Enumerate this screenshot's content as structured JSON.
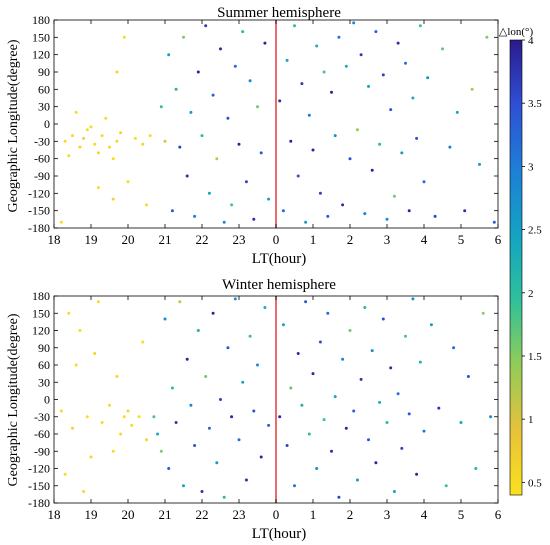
{
  "chart_data": [
    {
      "type": "scatter",
      "title": "Summer hemisphere",
      "xlabel": "LT(hour)",
      "ylabel": "Geographic Longitude(degree)",
      "x_tick_labels": [
        "18",
        "19",
        "20",
        "21",
        "22",
        "23",
        "0",
        "1",
        "2",
        "3",
        "4",
        "5",
        "6"
      ],
      "y_tick_labels": [
        "180",
        "150",
        "120",
        "90",
        "60",
        "30",
        "0",
        "-30",
        "-60",
        "-90",
        "-120",
        "-150",
        "-180"
      ],
      "xlim_hours_after_18LT": [
        0,
        12
      ],
      "ylim": [
        -180,
        180
      ],
      "reference_line_LT": "0",
      "reference_line_color": "#e0474c",
      "color_encodes": "△lon(°)",
      "points": [
        [
          0.3,
          -30,
          0.5
        ],
        [
          0.5,
          -20,
          0.5
        ],
        [
          0.7,
          -40,
          0.6
        ],
        [
          0.9,
          -10,
          0.5
        ],
        [
          1.1,
          -35,
          0.5
        ],
        [
          1.2,
          -50,
          0.6
        ],
        [
          0.4,
          -55,
          0.5
        ],
        [
          0.8,
          -25,
          0.7
        ],
        [
          1.3,
          -20,
          0.5
        ],
        [
          1.5,
          -40,
          0.5
        ],
        [
          1.7,
          -30,
          0.6
        ],
        [
          1.0,
          -5,
          0.5
        ],
        [
          1.4,
          10,
          0.5
        ],
        [
          0.6,
          20,
          0.5
        ],
        [
          1.6,
          -60,
          0.5
        ],
        [
          1.8,
          -15,
          0.6
        ],
        [
          2.2,
          -25,
          0.5
        ],
        [
          2.4,
          -35,
          0.6
        ],
        [
          2.6,
          -20,
          0.5
        ],
        [
          1.2,
          -110,
          0.5
        ],
        [
          1.6,
          -130,
          0.6
        ],
        [
          2.0,
          -100,
          0.5
        ],
        [
          1.9,
          150,
          0.5
        ],
        [
          1.7,
          90,
          0.6
        ],
        [
          0.2,
          -170,
          0.5
        ],
        [
          2.5,
          -140,
          0.5
        ],
        [
          2.9,
          30,
          2.0
        ],
        [
          3.0,
          -30,
          1.0
        ],
        [
          3.1,
          120,
          2.5
        ],
        [
          3.2,
          -150,
          3.4
        ],
        [
          3.3,
          60,
          2.2
        ],
        [
          3.4,
          -40,
          3.6
        ],
        [
          3.5,
          150,
          1.5
        ],
        [
          3.6,
          -90,
          3.8
        ],
        [
          3.7,
          20,
          2.6
        ],
        [
          3.8,
          -160,
          3.0
        ],
        [
          3.9,
          90,
          3.9
        ],
        [
          4.0,
          -20,
          2.0
        ],
        [
          4.1,
          170,
          3.7
        ],
        [
          4.2,
          -120,
          2.4
        ],
        [
          4.3,
          50,
          3.3
        ],
        [
          4.4,
          -60,
          1.2
        ],
        [
          4.5,
          130,
          3.9
        ],
        [
          4.6,
          -170,
          2.8
        ],
        [
          4.7,
          10,
          3.5
        ],
        [
          4.8,
          -140,
          1.8
        ],
        [
          4.9,
          100,
          3.2
        ],
        [
          5.0,
          -35,
          3.9
        ],
        [
          5.1,
          160,
          2.1
        ],
        [
          5.2,
          -100,
          3.6
        ],
        [
          5.3,
          75,
          2.9
        ],
        [
          5.4,
          -165,
          3.8
        ],
        [
          5.5,
          30,
          1.6
        ],
        [
          5.6,
          -50,
          3.4
        ],
        [
          5.7,
          140,
          3.9
        ],
        [
          5.8,
          -130,
          2.5
        ],
        [
          6.1,
          40,
          3.8
        ],
        [
          6.2,
          -150,
          3.2
        ],
        [
          6.3,
          110,
          2.4
        ],
        [
          6.4,
          -30,
          3.9
        ],
        [
          6.5,
          170,
          2.0
        ],
        [
          6.6,
          -90,
          3.5
        ],
        [
          6.7,
          70,
          3.7
        ],
        [
          6.8,
          -170,
          2.6
        ],
        [
          6.9,
          15,
          3.0
        ],
        [
          7.0,
          -45,
          3.9
        ],
        [
          7.1,
          135,
          2.2
        ],
        [
          7.2,
          -120,
          3.6
        ],
        [
          7.3,
          90,
          1.8
        ],
        [
          7.4,
          -160,
          3.4
        ],
        [
          7.5,
          55,
          3.9
        ],
        [
          7.6,
          -20,
          2.7
        ],
        [
          7.7,
          150,
          3.1
        ],
        [
          7.8,
          -140,
          3.8
        ],
        [
          7.9,
          100,
          2.3
        ],
        [
          8.0,
          -60,
          3.5
        ],
        [
          8.1,
          175,
          2.9
        ],
        [
          8.2,
          -10,
          1.4
        ],
        [
          8.3,
          120,
          3.7
        ],
        [
          8.4,
          -155,
          3.0
        ],
        [
          8.5,
          65,
          2.5
        ],
        [
          8.6,
          -80,
          3.9
        ],
        [
          8.7,
          160,
          3.3
        ],
        [
          8.8,
          -35,
          2.1
        ],
        [
          8.9,
          85,
          3.6
        ],
        [
          9.0,
          -165,
          2.8
        ],
        [
          9.1,
          25,
          3.4
        ],
        [
          9.2,
          -125,
          1.6
        ],
        [
          9.3,
          140,
          3.8
        ],
        [
          9.4,
          -50,
          2.6
        ],
        [
          9.5,
          105,
          3.1
        ],
        [
          9.6,
          -150,
          3.9
        ],
        [
          9.7,
          45,
          2.3
        ],
        [
          9.8,
          -25,
          3.5
        ],
        [
          9.9,
          170,
          1.9
        ],
        [
          10.0,
          -100,
          3.2
        ],
        [
          10.1,
          80,
          2.7
        ],
        [
          10.3,
          -160,
          3.6
        ],
        [
          10.5,
          130,
          1.7
        ],
        [
          10.7,
          -40,
          3.0
        ],
        [
          10.9,
          20,
          2.4
        ],
        [
          11.1,
          -150,
          3.8
        ],
        [
          11.3,
          60,
          1.3
        ],
        [
          11.5,
          -70,
          2.6
        ],
        [
          11.7,
          150,
          1.5
        ],
        [
          11.9,
          -170,
          3.4
        ]
      ]
    },
    {
      "type": "scatter",
      "title": "Winter hemisphere",
      "xlabel": "LT(hour)",
      "ylabel": "Geographic Longitude(degree)",
      "x_tick_labels": [
        "18",
        "19",
        "20",
        "21",
        "22",
        "23",
        "0",
        "1",
        "2",
        "3",
        "4",
        "5",
        "6"
      ],
      "y_tick_labels": [
        "180",
        "150",
        "120",
        "90",
        "60",
        "30",
        "0",
        "-30",
        "-60",
        "-90",
        "-120",
        "-150",
        "-180"
      ],
      "xlim_hours_after_18LT": [
        0,
        12
      ],
      "ylim": [
        -180,
        180
      ],
      "reference_line_LT": "0",
      "reference_line_color": "#e0474c",
      "color_encodes": "△lon(°)",
      "points": [
        [
          0.2,
          -20,
          0.5
        ],
        [
          0.4,
          150,
          0.5
        ],
        [
          0.5,
          -50,
          0.6
        ],
        [
          0.7,
          120,
          0.5
        ],
        [
          0.9,
          -30,
          0.5
        ],
        [
          1.1,
          80,
          0.6
        ],
        [
          1.3,
          -40,
          0.5
        ],
        [
          1.5,
          -10,
          0.5
        ],
        [
          1.7,
          40,
          0.6
        ],
        [
          1.9,
          -30,
          0.5
        ],
        [
          0.3,
          -130,
          0.5
        ],
        [
          0.8,
          -160,
          0.6
        ],
        [
          1.2,
          170,
          0.5
        ],
        [
          1.6,
          -90,
          0.5
        ],
        [
          1.8,
          -60,
          0.5
        ],
        [
          2.0,
          -20,
          0.6
        ],
        [
          2.1,
          -45,
          0.5
        ],
        [
          2.3,
          -30,
          0.5
        ],
        [
          2.4,
          100,
          0.5
        ],
        [
          0.6,
          60,
          0.5
        ],
        [
          1.0,
          -100,
          0.6
        ],
        [
          2.5,
          -70,
          0.6
        ],
        [
          2.7,
          -30,
          1.8
        ],
        [
          2.8,
          -60,
          2.3
        ],
        [
          2.9,
          -90,
          1.5
        ],
        [
          3.0,
          140,
          2.8
        ],
        [
          3.1,
          -120,
          3.4
        ],
        [
          3.2,
          20,
          2.0
        ],
        [
          3.3,
          -40,
          3.7
        ],
        [
          3.4,
          170,
          1.2
        ],
        [
          3.5,
          -150,
          2.5
        ],
        [
          3.6,
          70,
          3.9
        ],
        [
          3.7,
          -10,
          2.9
        ],
        [
          3.8,
          -80,
          3.5
        ],
        [
          3.9,
          120,
          2.2
        ],
        [
          4.0,
          -160,
          3.8
        ],
        [
          4.1,
          40,
          1.6
        ],
        [
          4.2,
          -50,
          3.2
        ],
        [
          4.3,
          150,
          3.9
        ],
        [
          4.4,
          -110,
          2.6
        ],
        [
          4.5,
          0,
          3.6
        ],
        [
          4.6,
          -170,
          2.1
        ],
        [
          4.7,
          90,
          3.4
        ],
        [
          4.8,
          -30,
          3.9
        ],
        [
          4.9,
          175,
          2.7
        ],
        [
          5.0,
          -70,
          3.1
        ],
        [
          5.1,
          30,
          2.4
        ],
        [
          5.2,
          -140,
          3.8
        ],
        [
          5.3,
          110,
          1.9
        ],
        [
          5.4,
          -20,
          3.5
        ],
        [
          5.5,
          60,
          2.8
        ],
        [
          5.6,
          -100,
          3.9
        ],
        [
          5.7,
          160,
          2.3
        ],
        [
          5.8,
          -45,
          3.3
        ],
        [
          6.1,
          -30,
          3.9
        ],
        [
          6.2,
          130,
          2.5
        ],
        [
          6.3,
          -80,
          3.6
        ],
        [
          6.4,
          20,
          1.7
        ],
        [
          6.5,
          -150,
          3.1
        ],
        [
          6.6,
          80,
          3.8
        ],
        [
          6.7,
          -10,
          2.2
        ],
        [
          6.8,
          170,
          3.4
        ],
        [
          6.9,
          -60,
          2.0
        ],
        [
          7.0,
          45,
          3.9
        ],
        [
          7.1,
          -120,
          2.7
        ],
        [
          7.2,
          100,
          3.5
        ],
        [
          7.3,
          -35,
          1.9
        ],
        [
          7.4,
          150,
          3.2
        ],
        [
          7.5,
          -90,
          3.8
        ],
        [
          7.6,
          5,
          2.4
        ],
        [
          7.7,
          -170,
          3.6
        ],
        [
          7.8,
          70,
          2.9
        ],
        [
          7.9,
          -50,
          3.9
        ],
        [
          8.0,
          120,
          1.6
        ],
        [
          8.1,
          -20,
          3.3
        ],
        [
          8.2,
          -140,
          2.6
        ],
        [
          8.3,
          35,
          3.7
        ],
        [
          8.4,
          160,
          2.1
        ],
        [
          8.5,
          -70,
          3.4
        ],
        [
          8.6,
          85,
          2.8
        ],
        [
          8.7,
          -110,
          3.9
        ],
        [
          8.8,
          -5,
          2.3
        ],
        [
          8.9,
          140,
          3.5
        ],
        [
          9.0,
          -40,
          2.0
        ],
        [
          9.1,
          55,
          3.8
        ],
        [
          9.2,
          -160,
          2.5
        ],
        [
          9.3,
          10,
          3.1
        ],
        [
          9.4,
          -85,
          3.6
        ],
        [
          9.5,
          110,
          1.8
        ],
        [
          9.6,
          -25,
          3.4
        ],
        [
          9.7,
          175,
          2.7
        ],
        [
          9.8,
          -130,
          3.9
        ],
        [
          9.9,
          65,
          2.2
        ],
        [
          10.0,
          -55,
          3.0
        ],
        [
          10.2,
          130,
          2.6
        ],
        [
          10.4,
          -15,
          3.7
        ],
        [
          10.6,
          -150,
          1.9
        ],
        [
          10.8,
          90,
          3.2
        ],
        [
          11.0,
          -40,
          2.4
        ],
        [
          11.2,
          40,
          3.5
        ],
        [
          11.4,
          -120,
          2.1
        ],
        [
          11.6,
          150,
          1.4
        ],
        [
          11.8,
          -30,
          2.8
        ]
      ]
    }
  ],
  "colorbar": {
    "label": "△lon(°)",
    "min": 0.4,
    "max": 4.0,
    "tick_labels": [
      "4",
      "3.5",
      "3",
      "2.5",
      "2",
      "1.5",
      "1",
      "0.5"
    ],
    "colors": [
      "#2b1a8c",
      "#2f4fd4",
      "#1e7ed6",
      "#14a3c3",
      "#2ec09c",
      "#8fcc5a",
      "#e8c23a",
      "#f9e21c"
    ]
  }
}
